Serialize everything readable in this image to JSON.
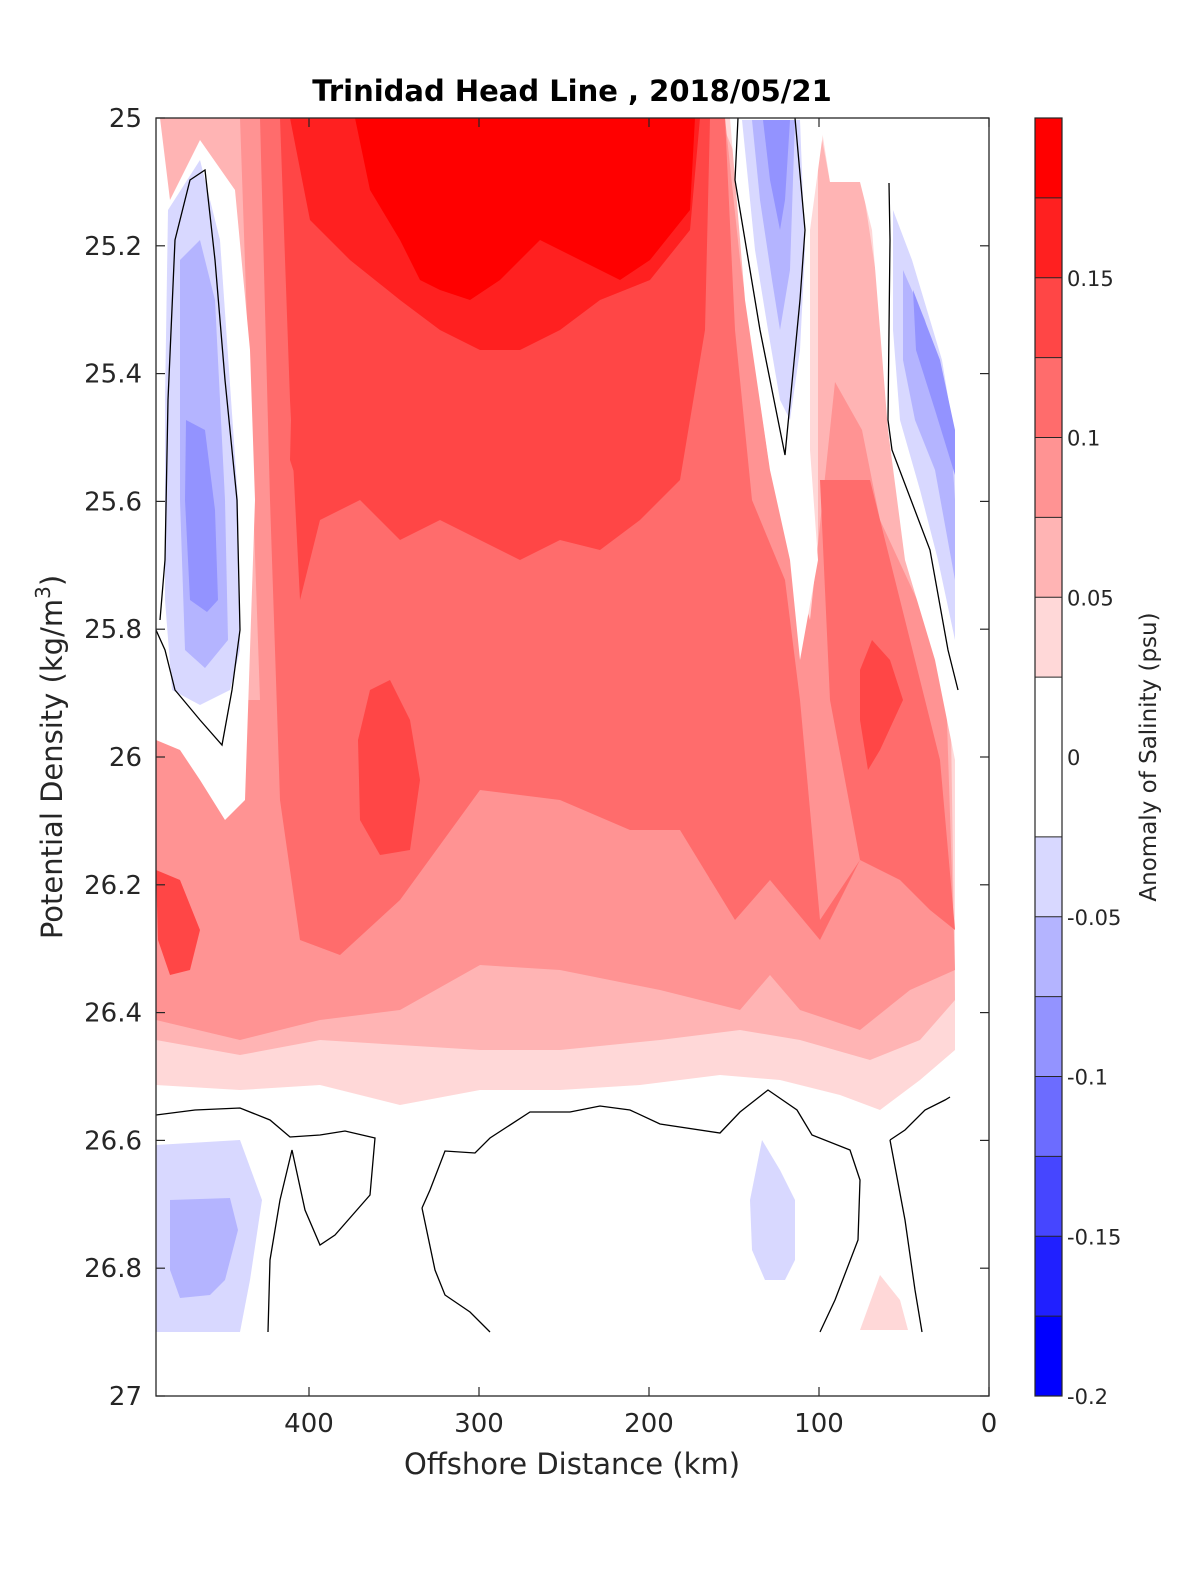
{
  "chart_data": {
    "type": "heatmap",
    "title": "Trinidad Head Line , 2018/05/21",
    "xlabel": "Offshore Distance (km)",
    "ylabel_main": "Potential Density (kg/m",
    "ylabel_sup": "3",
    "ylabel_close": ")",
    "xlim": [
      490,
      0
    ],
    "ylim": [
      25,
      27
    ],
    "x_ticks": [
      400,
      300,
      200,
      100,
      0
    ],
    "x_tick_labels": [
      "400",
      "300",
      "200",
      "100",
      "0"
    ],
    "y_ticks": [
      25,
      25.2,
      25.4,
      25.6,
      25.8,
      26,
      26.2,
      26.4,
      26.6,
      26.8,
      27
    ],
    "y_tick_labels": [
      "25",
      "25.2",
      "25.4",
      "25.6",
      "25.8",
      "26",
      "26.2",
      "26.4",
      "26.6",
      "26.8",
      "27"
    ],
    "y_reversed": true,
    "colorbar": {
      "label": "Anomaly of Salinity (psu)",
      "range": [
        -0.2,
        0.2
      ],
      "levels": [
        -0.2,
        -0.175,
        -0.15,
        -0.125,
        -0.1,
        -0.075,
        -0.05,
        -0.025,
        0.025,
        0.05,
        0.075,
        0.1,
        0.125,
        0.15,
        0.175,
        0.2
      ],
      "ticks": [
        -0.2,
        -0.15,
        -0.1,
        -0.05,
        0,
        0.05,
        0.1,
        0.15
      ],
      "tick_labels": [
        "-0.2",
        "-0.15",
        "-0.1",
        "-0.05",
        "0",
        "0.05",
        "0.1",
        "0.15"
      ],
      "colors": [
        "#0000ff",
        "#2020ff",
        "#4646ff",
        "#6c6cff",
        "#9393ff",
        "#b4b4ff",
        "#d8d8ff",
        "#ffffff",
        "#ffd8d8",
        "#ffb4b4",
        "#ff9393",
        "#ff6c6c",
        "#ff4646",
        "#ff2020",
        "#ff0000"
      ]
    },
    "data_extent": {
      "x_max": 490,
      "x_min": 20,
      "y_min": 25,
      "y_max": 26.9
    },
    "colors": {
      "white": "#ffffff",
      "s1": "#ffd8d8",
      "s2": "#ffb4b4",
      "s3": "#ff9393",
      "s4": "#ff6c6c",
      "s5": "#ff4646",
      "s6": "#ff2020",
      "s7": "#ff0000",
      "b1": "#d8d8ff",
      "b2": "#b4b4ff",
      "b3": "#9393ff",
      "b4": "#6c6cff",
      "contour": "#000000",
      "axis": "#262626"
    }
  }
}
